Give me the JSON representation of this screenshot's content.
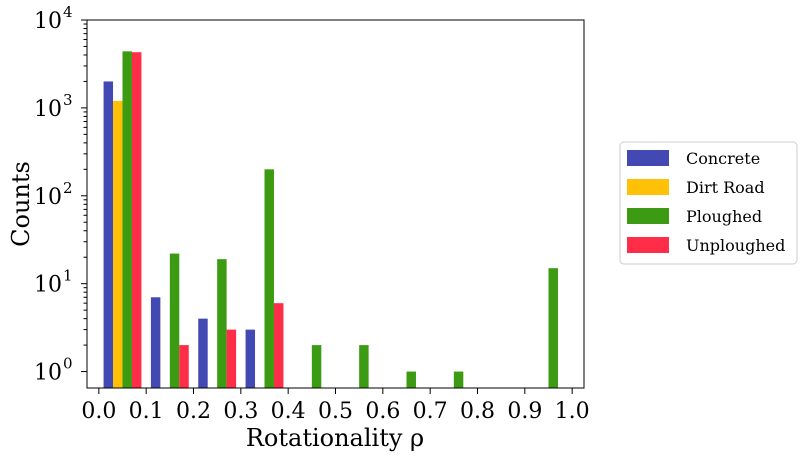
{
  "chart_data": {
    "type": "bar",
    "xlabel": "Rotationality ρ",
    "ylabel": "Counts",
    "yscale": "log",
    "ylim": [
      0.65,
      10000
    ],
    "xlim": [
      -0.025,
      1.025
    ],
    "x_ticks": [
      "0.0",
      "0.1",
      "0.2",
      "0.3",
      "0.4",
      "0.5",
      "0.6",
      "0.7",
      "0.8",
      "0.9",
      "1.0"
    ],
    "y_ticks": [
      {
        "base": "10",
        "exp": "0"
      },
      {
        "base": "10",
        "exp": "1"
      },
      {
        "base": "10",
        "exp": "2"
      },
      {
        "base": "10",
        "exp": "3"
      },
      {
        "base": "10",
        "exp": "4"
      }
    ],
    "bin_left_edges": [
      0.0,
      0.1,
      0.2,
      0.3,
      0.4,
      0.5,
      0.6,
      0.7,
      0.8,
      0.9
    ],
    "legend_position": "right",
    "series": [
      {
        "name": "Concrete",
        "color": "#4249b2",
        "values": [
          2000,
          7,
          4,
          3,
          0,
          0,
          0,
          0,
          0,
          0
        ]
      },
      {
        "name": "Dirt Road",
        "color": "#ffc107",
        "values": [
          1200,
          0,
          0,
          0,
          0,
          0,
          0,
          0,
          0,
          0
        ]
      },
      {
        "name": "Ploughed",
        "color": "#3c9b12",
        "values": [
          4400,
          22,
          19,
          200,
          2,
          2,
          1,
          1,
          0,
          15
        ]
      },
      {
        "name": "Unploughed",
        "color": "#ff2d47",
        "values": [
          4300,
          2,
          3,
          6,
          0,
          0,
          0,
          0,
          0,
          0
        ]
      }
    ]
  }
}
